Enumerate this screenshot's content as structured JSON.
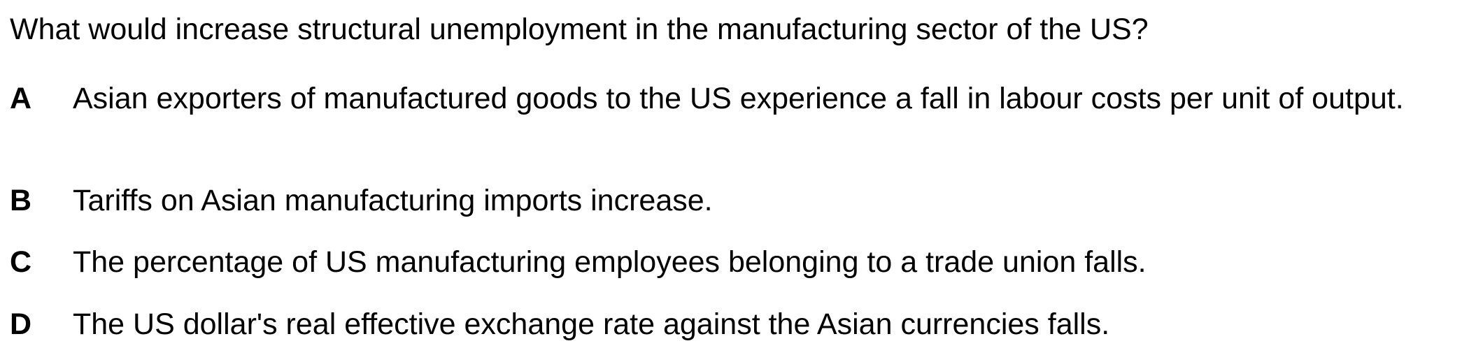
{
  "question": {
    "text": "What would increase structural unemployment in the manufacturing sector of the US?"
  },
  "options": [
    {
      "letter": "A",
      "text": "Asian exporters of manufactured goods to the US experience a fall in labour costs per unit of output."
    },
    {
      "letter": "B",
      "text": "Tariffs on Asian manufacturing imports increase."
    },
    {
      "letter": "C",
      "text": "The percentage of US manufacturing employees belonging to a trade union falls."
    },
    {
      "letter": "D",
      "text": "The US dollar's real effective exchange rate against the Asian currencies falls."
    }
  ]
}
